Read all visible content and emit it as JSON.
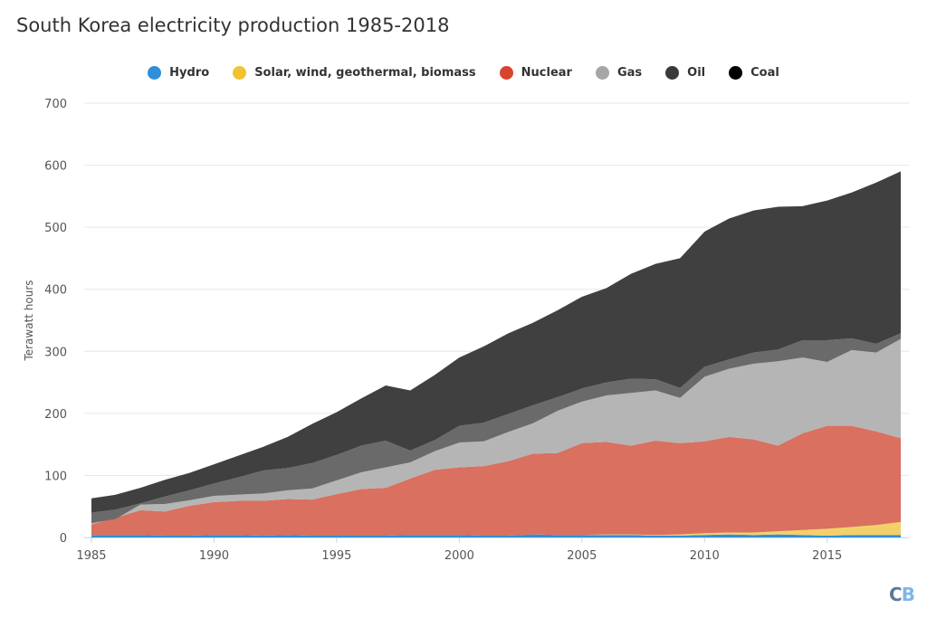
{
  "title": "South Korea electricity production 1985-2018",
  "logo": {
    "c": "C",
    "b": "B"
  },
  "chart_data": {
    "type": "area",
    "stacked": true,
    "title": "South Korea electricity production 1985-2018",
    "xlabel": "",
    "ylabel": "Terawatt hours",
    "ylim": [
      0,
      700
    ],
    "yticks": [
      0,
      100,
      200,
      300,
      400,
      500,
      600,
      700
    ],
    "xticks": [
      1985,
      1990,
      1995,
      2000,
      2005,
      2010,
      2015
    ],
    "grid": true,
    "legend_position": "top-center",
    "x": [
      1985,
      1986,
      1987,
      1988,
      1989,
      1990,
      1991,
      1992,
      1993,
      1994,
      1995,
      1996,
      1997,
      1998,
      1999,
      2000,
      2001,
      2002,
      2003,
      2004,
      2005,
      2006,
      2007,
      2008,
      2009,
      2010,
      2011,
      2012,
      2013,
      2014,
      2015,
      2016,
      2017,
      2018
    ],
    "series": [
      {
        "name": "Hydro",
        "color": "#2f8fd8",
        "values": [
          4,
          4,
          4,
          3,
          3,
          4,
          4,
          3,
          4,
          3,
          3,
          3,
          3,
          4,
          4,
          4,
          3,
          3,
          5,
          4,
          4,
          4,
          4,
          3,
          3,
          4,
          5,
          4,
          5,
          4,
          3,
          4,
          4,
          4
        ]
      },
      {
        "name": "Solar, wind, geothermal, biomass",
        "color": "#f4d06a",
        "values": [
          0,
          0,
          0,
          0,
          0,
          0,
          0,
          0,
          0,
          0,
          0,
          0,
          0,
          0,
          0,
          0,
          0,
          0,
          0,
          0,
          0,
          1,
          1,
          1,
          2,
          3,
          3,
          4,
          5,
          8,
          11,
          13,
          16,
          21
        ]
      },
      {
        "name": "Nuclear",
        "color": "#d97060",
        "values": [
          17,
          28,
          40,
          39,
          48,
          53,
          55,
          56,
          58,
          58,
          67,
          75,
          77,
          91,
          105,
          109,
          112,
          120,
          130,
          132,
          148,
          149,
          143,
          152,
          147,
          148,
          154,
          150,
          138,
          156,
          166,
          163,
          151,
          135
        ]
      },
      {
        "name": "Gas",
        "color": "#b5b5b5",
        "values": [
          2,
          -2,
          9,
          12,
          9,
          10,
          10,
          12,
          14,
          18,
          22,
          27,
          33,
          26,
          30,
          40,
          40,
          47,
          49,
          68,
          67,
          75,
          85,
          81,
          73,
          104,
          110,
          122,
          136,
          122,
          103,
          122,
          127,
          160
        ]
      },
      {
        "name": "Oil",
        "color": "#6a6a6a",
        "values": [
          17,
          15,
          2,
          12,
          16,
          20,
          28,
          37,
          36,
          41,
          41,
          43,
          43,
          19,
          18,
          27,
          30,
          29,
          29,
          22,
          21,
          21,
          23,
          18,
          16,
          16,
          15,
          18,
          19,
          28,
          35,
          19,
          14,
          9
        ]
      },
      {
        "name": "Coal",
        "color": "#404040",
        "values": [
          23,
          24,
          25,
          27,
          28,
          31,
          35,
          38,
          50,
          63,
          69,
          76,
          89,
          97,
          105,
          110,
          123,
          130,
          133,
          140,
          148,
          152,
          169,
          186,
          209,
          218,
          227,
          229,
          230,
          216,
          225,
          235,
          260,
          261
        ]
      }
    ]
  },
  "legend": [
    {
      "label": "Hydro",
      "color": "#2f8fd8"
    },
    {
      "label": "Solar, wind, geothermal, biomass",
      "color": "#f2c230"
    },
    {
      "label": "Nuclear",
      "color": "#d9442f"
    },
    {
      "label": "Gas",
      "color": "#a6a6a6"
    },
    {
      "label": "Oil",
      "color": "#3a3a3a"
    },
    {
      "label": "Coal",
      "color": "#000000"
    }
  ]
}
